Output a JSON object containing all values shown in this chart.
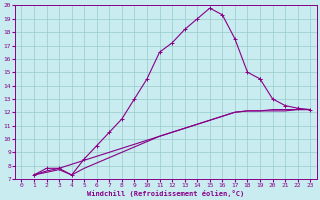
{
  "xlabel": "Windchill (Refroidissement éolien,°C)",
  "xlim": [
    -0.5,
    23.5
  ],
  "ylim": [
    7,
    20
  ],
  "xticks": [
    0,
    1,
    2,
    3,
    4,
    5,
    6,
    7,
    8,
    9,
    10,
    11,
    12,
    13,
    14,
    15,
    16,
    17,
    18,
    19,
    20,
    21,
    22,
    23
  ],
  "yticks": [
    7,
    8,
    9,
    10,
    11,
    12,
    13,
    14,
    15,
    16,
    17,
    18,
    19,
    20
  ],
  "background_color": "#c8ecf0",
  "line_color": "#880088",
  "grid_color": "#99cccc",
  "line1": {
    "x": [
      1,
      2,
      3,
      4,
      5,
      6,
      7,
      8,
      9,
      10,
      11,
      12,
      13,
      14,
      15,
      16,
      17,
      18,
      19
    ],
    "y": [
      7.3,
      7.8,
      7.8,
      7.3,
      8.5,
      9.5,
      10.5,
      11.5,
      13.0,
      14.5,
      16.5,
      17.2,
      18.2,
      19.0,
      19.8,
      19.3,
      17.5,
      15.0,
      14.5
    ]
  },
  "line2": {
    "x": [
      19,
      20,
      21,
      22,
      23
    ],
    "y": [
      14.5,
      13.0,
      12.5,
      12.3,
      12.2
    ]
  },
  "line3": {
    "x": [
      1,
      2,
      3,
      4,
      5,
      6,
      7,
      8,
      9,
      10,
      11,
      12,
      13,
      14,
      15,
      16,
      17,
      18,
      19,
      20,
      21,
      22,
      23
    ],
    "y": [
      7.3,
      7.6,
      7.8,
      8.1,
      8.4,
      8.7,
      9.0,
      9.3,
      9.6,
      9.9,
      10.2,
      10.5,
      10.8,
      11.1,
      11.4,
      11.7,
      12.0,
      12.1,
      12.1,
      12.1,
      12.1,
      12.2,
      12.2
    ]
  },
  "line4": {
    "x": [
      1,
      2,
      3,
      4,
      5,
      6,
      7,
      8,
      9,
      10,
      11,
      12,
      13,
      14,
      15,
      16,
      17,
      18,
      19,
      20,
      21,
      22,
      23
    ],
    "y": [
      7.3,
      7.5,
      7.7,
      7.3,
      7.8,
      8.2,
      8.6,
      9.0,
      9.4,
      9.8,
      10.2,
      10.5,
      10.8,
      11.1,
      11.4,
      11.7,
      12.0,
      12.1,
      12.1,
      12.2,
      12.2,
      12.2,
      12.2
    ]
  }
}
